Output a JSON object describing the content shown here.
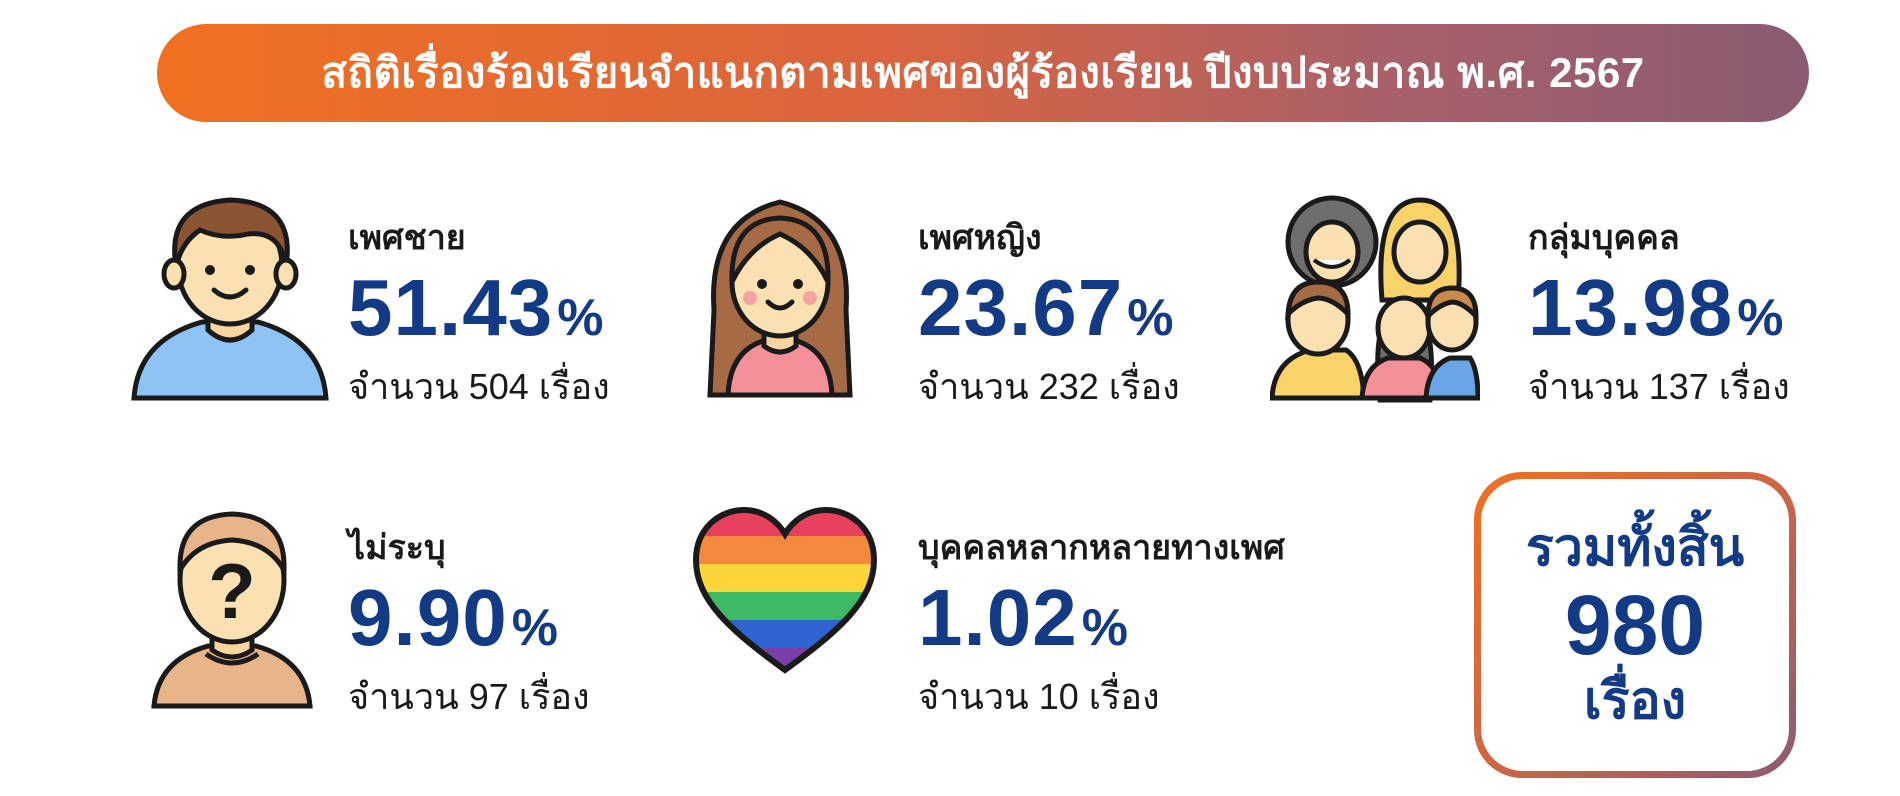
{
  "title": "สถิติเรื่องร้องเรียนจำแนกตามเพศของผู้ร้องเรียน ปีงบประมาณ พ.ศ. 2567",
  "chart_data": {
    "type": "table",
    "title": "สถิติเรื่องร้องเรียนจำแนกตามเพศของผู้ร้องเรียน ปีงบประมาณ พ.ศ. 2567",
    "categories": [
      "เพศชาย",
      "เพศหญิง",
      "กลุ่มบุคคล",
      "ไม่ระบุ",
      "บุคคลหลากหลายทางเพศ"
    ],
    "series": [
      {
        "name": "percent",
        "values": [
          51.43,
          23.67,
          13.98,
          9.9,
          1.02
        ]
      },
      {
        "name": "count",
        "values": [
          504,
          232,
          137,
          97,
          10
        ]
      }
    ]
  },
  "items": [
    {
      "label": "เพศชาย",
      "percent": "51.43",
      "unit": "%",
      "count_text": "จำนวน 504 เรื่อง",
      "icon": "man-icon"
    },
    {
      "label": "เพศหญิง",
      "percent": "23.67",
      "unit": "%",
      "count_text": "จำนวน 232 เรื่อง",
      "icon": "woman-icon"
    },
    {
      "label": "กลุ่มบุคคล",
      "percent": "13.98",
      "unit": "%",
      "count_text": "จำนวน 137 เรื่อง",
      "icon": "group-icon"
    },
    {
      "label": "ไม่ระบุ",
      "percent": "9.90",
      "unit": "%",
      "count_text": "จำนวน 97 เรื่อง",
      "icon": "unknown-person-icon"
    },
    {
      "label": "บุคคลหลากหลายทางเพศ",
      "percent": "1.02",
      "unit": "%",
      "count_text": "จำนวน 10 เรื่อง",
      "icon": "rainbow-heart-icon"
    }
  ],
  "total": {
    "label": "รวมทั้งสิ้น",
    "value": "980",
    "unit": "เรื่อง"
  },
  "colors": {
    "accent_blue": "#133a85",
    "banner_start": "#f07020",
    "banner_end": "#8a5b72"
  }
}
